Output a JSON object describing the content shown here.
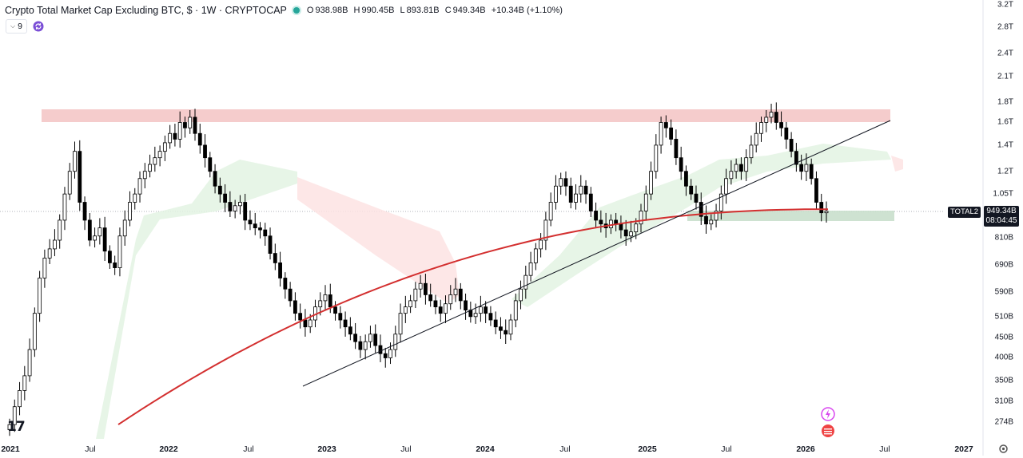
{
  "header": {
    "title": "Crypto Total Market Cap Excluding BTC, $ · 1W · CRYPTOCAP",
    "status_color": "#26a69a",
    "ohlc": {
      "open_label": "O",
      "open": "938.98B",
      "high_label": "H",
      "high": "990.45B",
      "low_label": "L",
      "low": "893.81B",
      "close_label": "C",
      "close": "949.34B",
      "change": "+10.34B (+1.10%)"
    },
    "collapse_count": "9",
    "sync_icon": "sync-icon"
  },
  "price_axis": {
    "labels": [
      "3.2T",
      "2.8T",
      "2.4T",
      "2.1T",
      "1.8T",
      "1.6T",
      "1.4T",
      "1.2T",
      "1.05T",
      "810B",
      "690B",
      "590B",
      "510B",
      "450B",
      "400B",
      "350B",
      "310B",
      "274B"
    ],
    "current_price": "949.34B",
    "countdown": "08:04:45",
    "symbol_tag": "TOTAL2"
  },
  "time_axis": {
    "labels": [
      {
        "text": "2021",
        "bold": true
      },
      {
        "text": "Jul",
        "bold": false
      },
      {
        "text": "2022",
        "bold": true
      },
      {
        "text": "Jul",
        "bold": false
      },
      {
        "text": "2023",
        "bold": true
      },
      {
        "text": "Jul",
        "bold": false
      },
      {
        "text": "2024",
        "bold": true
      },
      {
        "text": "Jul",
        "bold": false
      },
      {
        "text": "2025",
        "bold": true
      },
      {
        "text": "Jul",
        "bold": false
      },
      {
        "text": "2026",
        "bold": true
      },
      {
        "text": "Jul",
        "bold": false
      },
      {
        "text": "2027",
        "bold": true
      }
    ]
  },
  "colors": {
    "up": "#ffffff",
    "down": "#000000",
    "ma_line": "#d32f2f",
    "resistance_zone": "#f4c7c7",
    "support_zone": "#c9dfcc",
    "cloud_green": "#e3f3e3",
    "cloud_red": "#fde3e3",
    "trendline": "#131722"
  },
  "chart_data": {
    "type": "candlestick",
    "symbol": "TOTAL2",
    "interval": "1W",
    "y_scale": "log",
    "ylim": [
      250,
      3300
    ],
    "y_unit": "B",
    "x_range": [
      "2021-01",
      "2027-01"
    ],
    "weekly_closes_billion": [
      270,
      300,
      330,
      360,
      420,
      520,
      640,
      720,
      760,
      800,
      900,
      1050,
      1200,
      1350,
      1000,
      900,
      800,
      820,
      860,
      750,
      700,
      680,
      820,
      900,
      1000,
      1050,
      1150,
      1200,
      1250,
      1300,
      1350,
      1420,
      1500,
      1450,
      1600,
      1550,
      1650,
      1500,
      1400,
      1300,
      1200,
      1100,
      1050,
      1000,
      950,
      980,
      1000,
      900,
      880,
      860,
      850,
      820,
      740,
      700,
      640,
      600,
      560,
      520,
      500,
      480,
      500,
      540,
      560,
      580,
      540,
      520,
      500,
      480,
      460,
      440,
      420,
      440,
      460,
      430,
      410,
      400,
      420,
      460,
      520,
      540,
      560,
      600,
      620,
      580,
      560,
      540,
      520,
      550,
      580,
      600,
      560,
      530,
      510,
      520,
      540,
      520,
      500,
      480,
      470,
      460,
      500,
      560,
      600,
      650,
      700,
      760,
      800,
      900,
      1000,
      1100,
      1150,
      1100,
      1000,
      1050,
      1100,
      1050,
      950,
      900,
      880,
      860,
      900,
      880,
      850,
      820,
      840,
      880,
      950,
      1050,
      1200,
      1400,
      1600,
      1550,
      1450,
      1300,
      1200,
      1100,
      1050,
      1000,
      920,
      880,
      900,
      950,
      1050,
      1150,
      1200,
      1250,
      1200,
      1300,
      1400,
      1500,
      1600,
      1650,
      1700,
      1600,
      1550,
      1450,
      1350,
      1250,
      1200,
      1250,
      1150,
      1000,
      940,
      949
    ],
    "moving_average": {
      "name": "",
      "start_billion": 270,
      "end_billion": 960
    },
    "resistance_zone_billion": [
      1620,
      1740
    ],
    "support_zone_billion": [
      900,
      960
    ],
    "trendline_billion": {
      "start": [
        "2022-11",
        345
      ],
      "end": [
        "2026-04",
        1620
      ]
    }
  }
}
